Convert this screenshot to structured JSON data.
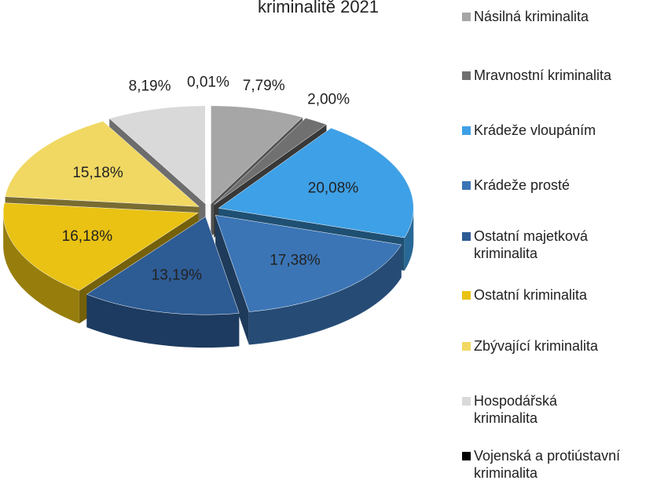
{
  "chart_data": {
    "type": "pie3d",
    "title": "kriminalitě 2021",
    "categories": [
      "Násilná kriminalita",
      "Mravnostní kriminalita",
      "Krádeže vloupáním",
      "Krádeže prosté",
      "Ostatní majetková kriminalita",
      "Ostatní kriminalita",
      "Zbývající kriminalita",
      "Hospodářská kriminalita",
      "Vojenská a protiústavní kriminalita"
    ],
    "values": [
      7.79,
      2.0,
      20.08,
      17.38,
      13.19,
      16.18,
      15.18,
      8.19,
      0.01
    ],
    "value_labels": [
      "7,79%",
      "2,00%",
      "20,08%",
      "17,38%",
      "13,19%",
      "16,18%",
      "15,18%",
      "8,19%",
      "0,01%"
    ],
    "colors": [
      "#a6a6a6",
      "#707070",
      "#3ea0e6",
      "#3b75b6",
      "#2d5b94",
      "#e9c213",
      "#f1d862",
      "#d9d9d9",
      "#000000"
    ],
    "legend": "right"
  }
}
